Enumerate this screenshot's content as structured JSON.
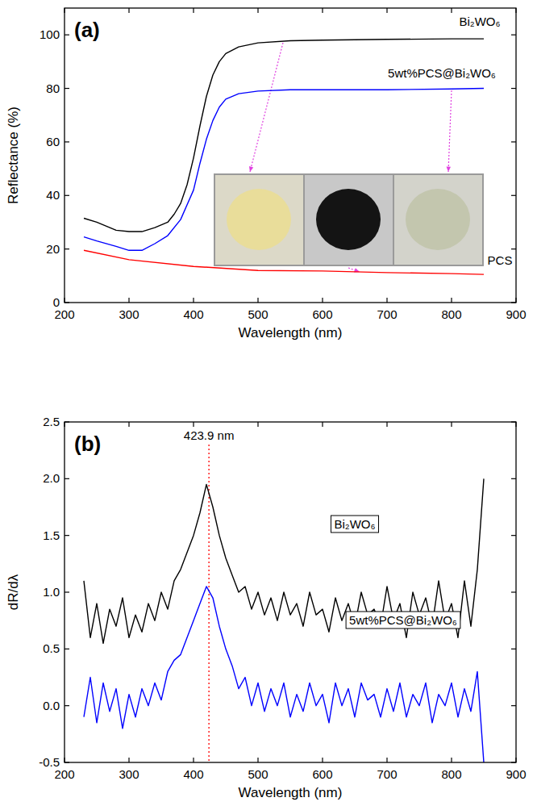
{
  "chart_data": [
    {
      "type": "line",
      "title": "(a)",
      "x_label": "Wavelength (nm)",
      "y_label": "Reflectance (%)",
      "xlim": [
        200,
        900
      ],
      "xticks": [
        200,
        300,
        400,
        500,
        600,
        700,
        800,
        900
      ],
      "ylim": [
        0,
        110
      ],
      "yticks": [
        0,
        20,
        40,
        60,
        80,
        100
      ],
      "grid": false,
      "series": [
        {
          "name": "Bi₂WO₆",
          "color": "#000000",
          "x": [
            230,
            250,
            280,
            300,
            320,
            340,
            360,
            370,
            380,
            390,
            400,
            410,
            420,
            430,
            440,
            450,
            470,
            500,
            550,
            600,
            700,
            800,
            850
          ],
          "values": [
            31.5,
            30,
            27,
            26.5,
            26.5,
            28,
            30,
            33,
            37,
            44,
            54,
            66,
            77,
            85,
            90,
            93,
            95.5,
            97,
            97.8,
            98,
            98.3,
            98.5,
            98.5
          ]
        },
        {
          "name": "5wt%PCS@Bi₂WO₆",
          "color": "#0000ff",
          "x": [
            230,
            250,
            280,
            300,
            320,
            340,
            360,
            380,
            400,
            410,
            420,
            430,
            440,
            450,
            470,
            500,
            550,
            600,
            700,
            800,
            850
          ],
          "values": [
            24.5,
            23,
            21,
            19.5,
            19.5,
            22,
            25,
            31,
            42,
            52,
            61,
            68,
            73,
            76,
            78,
            79,
            79.5,
            79.5,
            79.5,
            79.8,
            80
          ]
        },
        {
          "name": "PCS",
          "color": "#ff0000",
          "x": [
            230,
            300,
            400,
            500,
            600,
            700,
            800,
            850
          ],
          "values": [
            19.5,
            16,
            13.5,
            12,
            11.8,
            11.2,
            10.8,
            10.5
          ]
        }
      ]
    },
    {
      "type": "line",
      "title": "(b)",
      "x_label": "Wavelength (nm)",
      "y_label": "dR/dλ",
      "xlim": [
        200,
        900
      ],
      "xticks": [
        200,
        300,
        400,
        500,
        600,
        700,
        800,
        900
      ],
      "ylim": [
        -0.5,
        2.5
      ],
      "yticks": [
        -0.5,
        {
          "value": 0,
          "label": "0.0"
        },
        0.5,
        {
          "value": 1,
          "label": "1.0"
        },
        1.5,
        {
          "value": 2,
          "label": "2.0"
        },
        2.5
      ],
      "grid": false,
      "annotations": [
        {
          "text": "423.9 nm",
          "x": 423.9
        }
      ],
      "series": [
        {
          "name": "Bi₂WO₆",
          "color": "#000000",
          "x": [
            230,
            240,
            250,
            260,
            270,
            280,
            290,
            300,
            310,
            320,
            330,
            340,
            350,
            360,
            370,
            380,
            390,
            400,
            410,
            420,
            430,
            440,
            450,
            460,
            470,
            480,
            490,
            500,
            510,
            520,
            530,
            540,
            550,
            560,
            570,
            580,
            590,
            600,
            610,
            620,
            630,
            640,
            650,
            660,
            670,
            680,
            690,
            700,
            710,
            720,
            730,
            740,
            750,
            760,
            770,
            780,
            790,
            800,
            810,
            820,
            830,
            840,
            850
          ],
          "values": [
            1.1,
            0.6,
            0.9,
            0.55,
            0.85,
            0.7,
            0.95,
            0.6,
            0.8,
            0.65,
            0.9,
            0.75,
            1.0,
            0.85,
            1.1,
            1.2,
            1.35,
            1.5,
            1.7,
            1.95,
            1.75,
            1.5,
            1.3,
            1.15,
            1.0,
            1.05,
            0.85,
            1.0,
            0.8,
            0.95,
            0.75,
            1.0,
            0.8,
            0.9,
            0.7,
            1.0,
            0.8,
            0.85,
            0.65,
            0.95,
            0.75,
            0.9,
            0.7,
            1.0,
            0.8,
            0.85,
            0.7,
            1.05,
            0.75,
            0.9,
            0.6,
            1.0,
            0.8,
            0.95,
            0.7,
            1.1,
            0.75,
            0.9,
            0.6,
            1.1,
            0.7,
            1.2,
            2.0
          ]
        },
        {
          "name": "5wt%PCS@Bi₂WO₆",
          "color": "#0000ff",
          "x": [
            230,
            240,
            250,
            260,
            270,
            280,
            290,
            300,
            310,
            320,
            330,
            340,
            350,
            360,
            370,
            380,
            390,
            400,
            410,
            420,
            430,
            440,
            450,
            460,
            470,
            480,
            490,
            500,
            510,
            520,
            530,
            540,
            550,
            560,
            570,
            580,
            590,
            600,
            610,
            620,
            630,
            640,
            650,
            660,
            670,
            680,
            690,
            700,
            710,
            720,
            730,
            740,
            750,
            760,
            770,
            780,
            790,
            800,
            810,
            820,
            830,
            840,
            850
          ],
          "values": [
            -0.1,
            0.25,
            -0.15,
            0.2,
            -0.05,
            0.15,
            -0.2,
            0.1,
            -0.1,
            0.15,
            0.0,
            0.2,
            0.05,
            0.3,
            0.4,
            0.45,
            0.6,
            0.75,
            0.9,
            1.05,
            0.95,
            0.7,
            0.5,
            0.35,
            0.15,
            0.25,
            0.0,
            0.2,
            -0.05,
            0.15,
            0.0,
            0.2,
            -0.1,
            0.1,
            -0.05,
            0.2,
            0.0,
            0.1,
            -0.15,
            0.2,
            0.0,
            0.15,
            -0.1,
            0.2,
            0.05,
            0.1,
            -0.1,
            0.15,
            -0.05,
            0.2,
            -0.1,
            0.1,
            0.0,
            0.2,
            -0.15,
            0.1,
            0.0,
            0.2,
            -0.1,
            0.15,
            -0.05,
            0.3,
            -0.5
          ]
        }
      ]
    }
  ]
}
